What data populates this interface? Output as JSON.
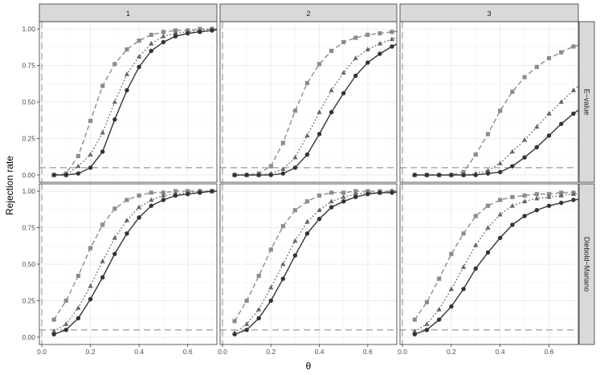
{
  "chart_data": {
    "type": "line",
    "xlabel": "θ",
    "ylabel": "Rejection rate",
    "xlim": [
      -0.01,
      0.72
    ],
    "ylim": [
      -0.05,
      1.05
    ],
    "x_ticks": [
      "0.0",
      "0.2",
      "0.4",
      "0.6"
    ],
    "x_tick_values": [
      0.0,
      0.2,
      0.4,
      0.6
    ],
    "y_ticks": [
      "0.00",
      "0.25",
      "0.50",
      "0.75",
      "1.00"
    ],
    "y_tick_values": [
      0.0,
      0.25,
      0.5,
      0.75,
      1.0
    ],
    "reference_lines": {
      "vertical_x": 0.0,
      "horizontal_y": 0.05
    },
    "legend": "none",
    "grid": true,
    "columns": [
      "1",
      "2",
      "3"
    ],
    "rows": [
      "E−value",
      "Diebold−Mariano"
    ],
    "x": [
      0.05,
      0.1,
      0.15,
      0.2,
      0.25,
      0.3,
      0.35,
      0.4,
      0.45,
      0.5,
      0.55,
      0.6,
      0.65,
      0.7,
      0.75
    ],
    "series_styles": [
      {
        "shape": "square",
        "line": "dashed",
        "color": "#8c8c8c"
      },
      {
        "shape": "triangle",
        "line": "dotted",
        "color": "#666666"
      },
      {
        "shape": "circle",
        "line": "solid",
        "color": "#333333"
      }
    ],
    "panels": [
      {
        "row": "E−value",
        "col": "1",
        "series": [
          [
            0.0,
            0.01,
            0.13,
            0.37,
            0.61,
            0.76,
            0.86,
            0.92,
            0.96,
            0.98,
            0.99,
            0.99,
            1.0,
            1.0,
            1.0
          ],
          [
            0.0,
            0.0,
            0.06,
            0.14,
            0.29,
            0.5,
            0.69,
            0.81,
            0.9,
            0.95,
            0.97,
            0.98,
            0.99,
            1.0,
            1.0
          ],
          [
            0.0,
            0.0,
            0.01,
            0.05,
            0.16,
            0.38,
            0.58,
            0.74,
            0.85,
            0.91,
            0.95,
            0.97,
            0.98,
            0.99,
            1.0
          ]
        ]
      },
      {
        "row": "E−value",
        "col": "2",
        "series": [
          [
            0.0,
            0.0,
            0.01,
            0.06,
            0.22,
            0.44,
            0.63,
            0.76,
            0.85,
            0.91,
            0.94,
            0.96,
            0.97,
            0.98,
            0.99
          ],
          [
            0.0,
            0.0,
            0.0,
            0.01,
            0.04,
            0.12,
            0.27,
            0.43,
            0.58,
            0.7,
            0.8,
            0.86,
            0.9,
            0.93,
            0.96
          ],
          [
            0.0,
            0.0,
            0.0,
            0.0,
            0.01,
            0.05,
            0.14,
            0.28,
            0.43,
            0.56,
            0.68,
            0.77,
            0.83,
            0.88,
            0.92
          ]
        ]
      },
      {
        "row": "E−value",
        "col": "3",
        "series": [
          [
            0.0,
            0.0,
            0.0,
            0.0,
            0.02,
            0.14,
            0.28,
            0.44,
            0.57,
            0.67,
            0.74,
            0.8,
            0.84,
            0.88,
            0.9
          ],
          [
            0.0,
            0.0,
            0.0,
            0.0,
            0.0,
            0.01,
            0.03,
            0.08,
            0.16,
            0.24,
            0.33,
            0.42,
            0.5,
            0.58,
            0.65
          ],
          [
            0.0,
            0.0,
            0.0,
            0.0,
            0.0,
            0.0,
            0.01,
            0.02,
            0.06,
            0.12,
            0.19,
            0.27,
            0.35,
            0.42,
            0.48
          ]
        ]
      },
      {
        "row": "Diebold−Mariano",
        "col": "1",
        "series": [
          [
            0.12,
            0.25,
            0.42,
            0.61,
            0.77,
            0.88,
            0.94,
            0.97,
            0.99,
            0.99,
            1.0,
            1.0,
            1.0,
            1.0,
            1.0
          ],
          [
            0.04,
            0.09,
            0.2,
            0.35,
            0.52,
            0.68,
            0.8,
            0.89,
            0.94,
            0.97,
            0.98,
            0.99,
            1.0,
            1.0,
            1.0
          ],
          [
            0.02,
            0.05,
            0.13,
            0.26,
            0.41,
            0.57,
            0.71,
            0.82,
            0.9,
            0.94,
            0.97,
            0.98,
            0.99,
            1.0,
            1.0
          ]
        ]
      },
      {
        "row": "Diebold−Mariano",
        "col": "2",
        "series": [
          [
            0.11,
            0.25,
            0.42,
            0.6,
            0.76,
            0.87,
            0.93,
            0.97,
            0.99,
            0.99,
            1.0,
            1.0,
            1.0,
            1.0,
            1.0
          ],
          [
            0.03,
            0.09,
            0.19,
            0.34,
            0.5,
            0.66,
            0.79,
            0.87,
            0.93,
            0.96,
            0.98,
            0.99,
            0.99,
            1.0,
            1.0
          ],
          [
            0.02,
            0.05,
            0.13,
            0.25,
            0.4,
            0.56,
            0.71,
            0.81,
            0.89,
            0.93,
            0.96,
            0.98,
            0.99,
            0.99,
            1.0
          ]
        ]
      },
      {
        "row": "Diebold−Mariano",
        "col": "3",
        "series": [
          [
            0.12,
            0.24,
            0.4,
            0.57,
            0.71,
            0.83,
            0.9,
            0.94,
            0.96,
            0.97,
            0.98,
            0.98,
            0.99,
            0.99,
            1.0
          ],
          [
            0.04,
            0.09,
            0.19,
            0.33,
            0.48,
            0.63,
            0.75,
            0.84,
            0.9,
            0.93,
            0.95,
            0.96,
            0.97,
            0.98,
            0.99
          ],
          [
            0.02,
            0.05,
            0.12,
            0.21,
            0.33,
            0.47,
            0.58,
            0.68,
            0.77,
            0.83,
            0.87,
            0.9,
            0.92,
            0.94,
            0.95
          ]
        ]
      }
    ]
  }
}
